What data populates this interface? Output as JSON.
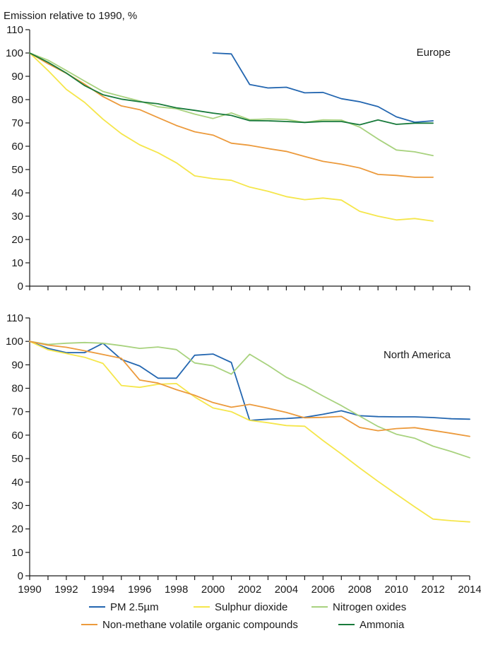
{
  "chart_data": [
    {
      "type": "line",
      "ylabel": "Emission relative to 1990, %",
      "annotation": "Europe",
      "ylim": [
        0,
        110
      ],
      "yticks": [
        0,
        10,
        20,
        30,
        40,
        50,
        60,
        70,
        80,
        90,
        100,
        110
      ],
      "xlim": [
        1990,
        2014
      ],
      "series": [
        {
          "key": "pm25",
          "x": [
            2000,
            2001,
            2002,
            2003,
            2004,
            2005,
            2006,
            2007,
            2008,
            2009,
            2010,
            2011,
            2012
          ],
          "values": [
            100,
            99.6,
            86.5,
            85,
            85.3,
            82.9,
            83.1,
            80.4,
            79.1,
            77,
            72.6,
            70.3,
            70.9
          ]
        },
        {
          "key": "so2",
          "x": [
            1990,
            1991,
            1992,
            1993,
            1994,
            1995,
            1996,
            1997,
            1998,
            1999,
            2000,
            2001,
            2002,
            2003,
            2004,
            2005,
            2006,
            2007,
            2008,
            2009,
            2010,
            2011,
            2012
          ],
          "values": [
            100,
            92.5,
            84.4,
            78.8,
            71.6,
            65.4,
            60.6,
            57.2,
            52.9,
            47.3,
            46.1,
            45.4,
            42.5,
            40.7,
            38.4,
            37.1,
            37.8,
            36.9,
            32.1,
            30,
            28.4,
            29,
            27.9
          ]
        },
        {
          "key": "nox",
          "x": [
            1990,
            1991,
            1992,
            1993,
            1994,
            1995,
            1996,
            1997,
            1998,
            1999,
            2000,
            2001,
            2002,
            2003,
            2004,
            2005,
            2006,
            2007,
            2008,
            2009,
            2010,
            2011,
            2012
          ],
          "values": [
            100,
            96.9,
            92.5,
            87.9,
            83.5,
            81.4,
            79.4,
            76.9,
            76.1,
            73.8,
            71.9,
            74.3,
            71.4,
            71.7,
            71.5,
            70.2,
            71.3,
            71.2,
            68.2,
            63.1,
            58.4,
            57.6,
            56
          ]
        },
        {
          "key": "nmvoc",
          "x": [
            1990,
            1991,
            1992,
            1993,
            1994,
            1995,
            1996,
            1997,
            1998,
            1999,
            2000,
            2001,
            2002,
            2003,
            2004,
            2005,
            2006,
            2007,
            2008,
            2009,
            2010,
            2011,
            2012
          ],
          "values": [
            100,
            95.4,
            91.3,
            86.6,
            81.3,
            77.3,
            75.7,
            72.3,
            68.9,
            66.2,
            64.8,
            61.3,
            60.4,
            59,
            57.8,
            55.6,
            53.5,
            52.3,
            50.7,
            47.9,
            47.5,
            46.7,
            46.7
          ]
        },
        {
          "key": "nh3",
          "x": [
            1990,
            1991,
            1992,
            1993,
            1994,
            1995,
            1996,
            1997,
            1998,
            1999,
            2000,
            2001,
            2002,
            2003,
            2004,
            2005,
            2006,
            2007,
            2008,
            2009,
            2010,
            2011,
            2012
          ],
          "values": [
            100,
            96,
            91.4,
            86,
            82.1,
            80.2,
            79.1,
            78.2,
            76.5,
            75.4,
            74.2,
            73.2,
            71,
            70.9,
            70.6,
            70.2,
            70.6,
            70.6,
            69.2,
            71.3,
            69.4,
            69.9,
            69.9
          ]
        }
      ]
    },
    {
      "type": "line",
      "annotation": "North America",
      "ylim": [
        0,
        110
      ],
      "yticks": [
        0,
        10,
        20,
        30,
        40,
        50,
        60,
        70,
        80,
        90,
        100,
        110
      ],
      "xlim": [
        1990,
        2014
      ],
      "xticks": [
        "1990",
        "1992",
        "1994",
        "1996",
        "1998",
        "2000",
        "2002",
        "2004",
        "2006",
        "2008",
        "2010",
        "2012",
        "2014"
      ],
      "series": [
        {
          "key": "pm25",
          "x": [
            1990,
            1991,
            1992,
            1993,
            1994,
            1995,
            1996,
            1997,
            1998,
            1999,
            2000,
            2001,
            2002,
            2003,
            2004,
            2005,
            2006,
            2007,
            2008,
            2009,
            2010,
            2011,
            2012,
            2013,
            2014
          ],
          "values": [
            100,
            97,
            95.2,
            95.2,
            99.2,
            92.3,
            89.5,
            84.3,
            84.3,
            94.1,
            94.6,
            91,
            66.3,
            66.8,
            67.1,
            67.6,
            68.9,
            70.4,
            68.3,
            67.9,
            67.8,
            67.8,
            67.5,
            67,
            66.8
          ]
        },
        {
          "key": "so2",
          "x": [
            1990,
            1991,
            1992,
            1993,
            1994,
            1995,
            1996,
            1997,
            1998,
            1999,
            2000,
            2001,
            2002,
            2003,
            2004,
            2005,
            2006,
            2007,
            2008,
            2009,
            2010,
            2011,
            2012,
            2013,
            2014
          ],
          "values": [
            100,
            96.4,
            94.8,
            93.2,
            90.6,
            81.2,
            80.4,
            81.7,
            82,
            76.3,
            71.6,
            70,
            66.3,
            65.3,
            64.1,
            63.8,
            57.7,
            52,
            46,
            40.3,
            34.8,
            29.4,
            24.2,
            23.5,
            23
          ]
        },
        {
          "key": "nox",
          "x": [
            1990,
            1991,
            1992,
            1993,
            1994,
            1995,
            1996,
            1997,
            1998,
            1999,
            2000,
            2001,
            2002,
            2003,
            2004,
            2005,
            2006,
            2007,
            2008,
            2009,
            2010,
            2011,
            2012,
            2013,
            2014
          ],
          "values": [
            100,
            98.7,
            99.2,
            99.5,
            99.2,
            98.2,
            97,
            97.6,
            96.5,
            90.8,
            89.6,
            86,
            94.5,
            89.8,
            84.7,
            81,
            76.7,
            72.6,
            68.1,
            63.7,
            60.4,
            58.7,
            55.3,
            53,
            50.4
          ]
        },
        {
          "key": "nmvoc",
          "x": [
            1990,
            1991,
            1992,
            1993,
            1994,
            1995,
            1996,
            1997,
            1998,
            1999,
            2000,
            2001,
            2002,
            2003,
            2004,
            2005,
            2006,
            2007,
            2008,
            2009,
            2010,
            2011,
            2012,
            2013,
            2014
          ],
          "values": [
            100,
            98.4,
            97.5,
            96,
            94.4,
            92.8,
            83.5,
            82.2,
            79.4,
            77,
            73.9,
            71.9,
            73.1,
            71.5,
            69.7,
            67.4,
            67.6,
            68,
            63.3,
            61.9,
            62.8,
            63.2,
            62,
            60.8,
            59.5
          ]
        }
      ]
    }
  ],
  "legend": {
    "placement": "bottom",
    "items": [
      {
        "key": "pm25",
        "label": "PM 2.5µm",
        "color": "#2366b0"
      },
      {
        "key": "so2",
        "label": "Sulphur dioxide",
        "color": "#f5e64b"
      },
      {
        "key": "nox",
        "label": "Nitrogen oxides",
        "color": "#a8d27e"
      },
      {
        "key": "nmvoc",
        "label": "Non-methane volatile organic compounds",
        "color": "#ec9a3c"
      },
      {
        "key": "nh3",
        "label": "Ammonia",
        "color": "#187a3b"
      }
    ]
  }
}
